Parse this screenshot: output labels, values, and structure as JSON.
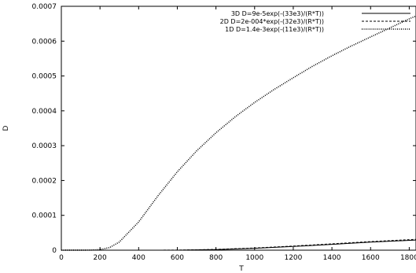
{
  "chart_data": {
    "type": "line",
    "title": "",
    "xlabel": "T",
    "ylabel": "D",
    "xlim": [
      0,
      1800
    ],
    "ylim": [
      0,
      0.0007
    ],
    "x_view_max": 1835,
    "xticks": [
      0,
      200,
      400,
      600,
      800,
      1000,
      1200,
      1400,
      1600,
      1800
    ],
    "yticks": [
      0,
      0.0001,
      0.0002,
      0.0003,
      0.0004,
      0.0005,
      0.0006,
      0.0007
    ],
    "xtick_labels": [
      "0",
      "200",
      "400",
      "600",
      "800",
      "1000",
      "1200",
      "1400",
      "1600",
      "1800"
    ],
    "ytick_labels": [
      "0",
      "0.0001",
      "0.0002",
      "0.0003",
      "0.0004",
      "0.0005",
      "0.0006",
      "0.0007"
    ],
    "grid": false,
    "legend_position": "top-right",
    "series": [
      {
        "name": "3D  D=9e-5exp(-(33e3)/(R*T))",
        "style": "solid",
        "x": [
          0,
          200,
          400,
          600,
          800,
          1000,
          1200,
          1400,
          1600,
          1835
        ],
        "y": [
          0,
          0,
          0,
          1.2e-07,
          1.7e-06,
          5.36e-06,
          1.064e-05,
          1.672e-05,
          2.305e-05,
          2.913e-05
        ]
      },
      {
        "name": "2D  D=2e-004*exp(-(32e3)/(R*T))",
        "style": "dashed",
        "x": [
          0,
          200,
          400,
          600,
          800,
          1000,
          1200,
          1400,
          1600,
          1835
        ],
        "y": [
          0,
          0,
          0,
          2.3e-07,
          2.2e-06,
          6.3e-06,
          1.187e-05,
          1.818e-05,
          2.475e-05,
          3.114e-05
        ]
      },
      {
        "name": "1D  D=1.4e-3exp(-(11e3)/(R*T))",
        "style": "dotted",
        "x": [
          0,
          150,
          200,
          250,
          300,
          400,
          500,
          600,
          700,
          800,
          900,
          1000,
          1100,
          1200,
          1300,
          1400,
          1500,
          1600,
          1700,
          1800,
          1835
        ],
        "y": [
          0,
          3e-07,
          1.5e-06,
          7.6e-06,
          2.35e-05,
          8.1e-05,
          0.000156,
          0.000225,
          0.000285,
          0.000337,
          0.000383,
          0.000424,
          0.000461,
          0.000495,
          0.000528,
          0.000558,
          0.000586,
          0.000612,
          0.000638,
          0.000664,
          0.000672
        ]
      }
    ]
  }
}
